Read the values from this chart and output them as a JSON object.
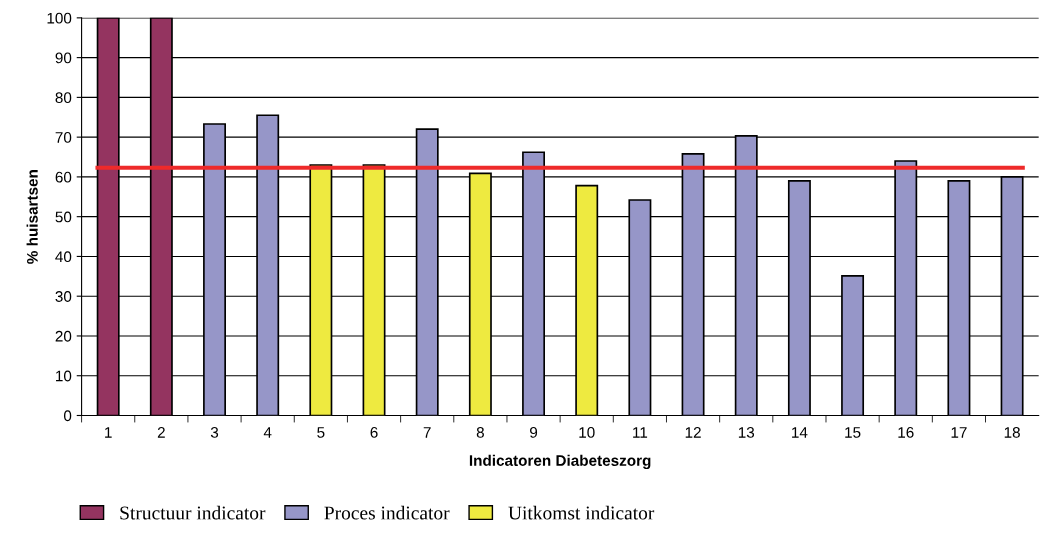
{
  "chart_data": {
    "type": "bar",
    "xlabel": "Indicatoren Diabeteszorg",
    "ylabel": "% huisartsen",
    "categories": [
      "1",
      "2",
      "3",
      "4",
      "5",
      "6",
      "7",
      "8",
      "9",
      "10",
      "11",
      "12",
      "13",
      "14",
      "15",
      "16",
      "17",
      "18"
    ],
    "series": [
      {
        "name": "Structuur indicator",
        "color": "#943460",
        "values": [
          100,
          100,
          null,
          null,
          null,
          null,
          null,
          null,
          null,
          null,
          null,
          null,
          null,
          null,
          null,
          null,
          null,
          null
        ]
      },
      {
        "name": "Proces indicator",
        "color": "#9696c8",
        "values": [
          null,
          null,
          73.3,
          75.5,
          null,
          null,
          72,
          null,
          66.2,
          null,
          54.2,
          65.8,
          70.3,
          59,
          35.1,
          64,
          59,
          60
        ]
      },
      {
        "name": "Uitkomst indicator",
        "color": "#eeea40",
        "values": [
          null,
          null,
          null,
          null,
          63,
          63,
          null,
          60.9,
          null,
          57.8,
          null,
          null,
          null,
          null,
          null,
          null,
          null,
          null
        ]
      }
    ],
    "ylim": [
      0,
      100
    ],
    "yticks": [
      0,
      10,
      20,
      30,
      40,
      50,
      60,
      70,
      80,
      90,
      100
    ],
    "ref_lines": [
      {
        "axis": "y",
        "value": 62.3,
        "color": "#ee2a2a"
      }
    ],
    "grid": "y",
    "legend": "bottom"
  }
}
